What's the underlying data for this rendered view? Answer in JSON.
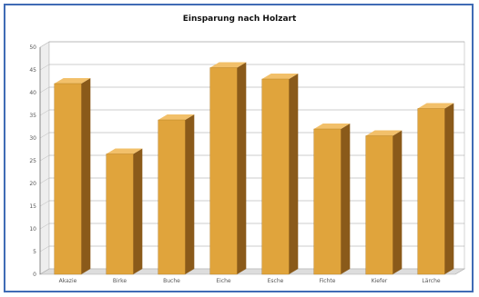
{
  "chart_data": {
    "type": "bar",
    "title": "Einsparung nach Holzart",
    "categories": [
      "Akazie",
      "Birke",
      "Buche",
      "Eiche",
      "Esche",
      "Fichte",
      "Kiefer",
      "Lärche"
    ],
    "values": [
      42,
      26.5,
      34,
      45.5,
      43,
      32,
      30.5,
      36.5
    ],
    "ylim": [
      0,
      50
    ],
    "yticks": [
      "0",
      "5",
      "10",
      "15",
      "20",
      "25",
      "30",
      "35",
      "40",
      "45",
      "50"
    ],
    "grid": true,
    "legend": "none",
    "bar_color": "#e0a43c",
    "bar_side_color": "#8a5a1a",
    "bar_top_color": "#f2c06a",
    "frame_color": "#3f6bb5"
  }
}
